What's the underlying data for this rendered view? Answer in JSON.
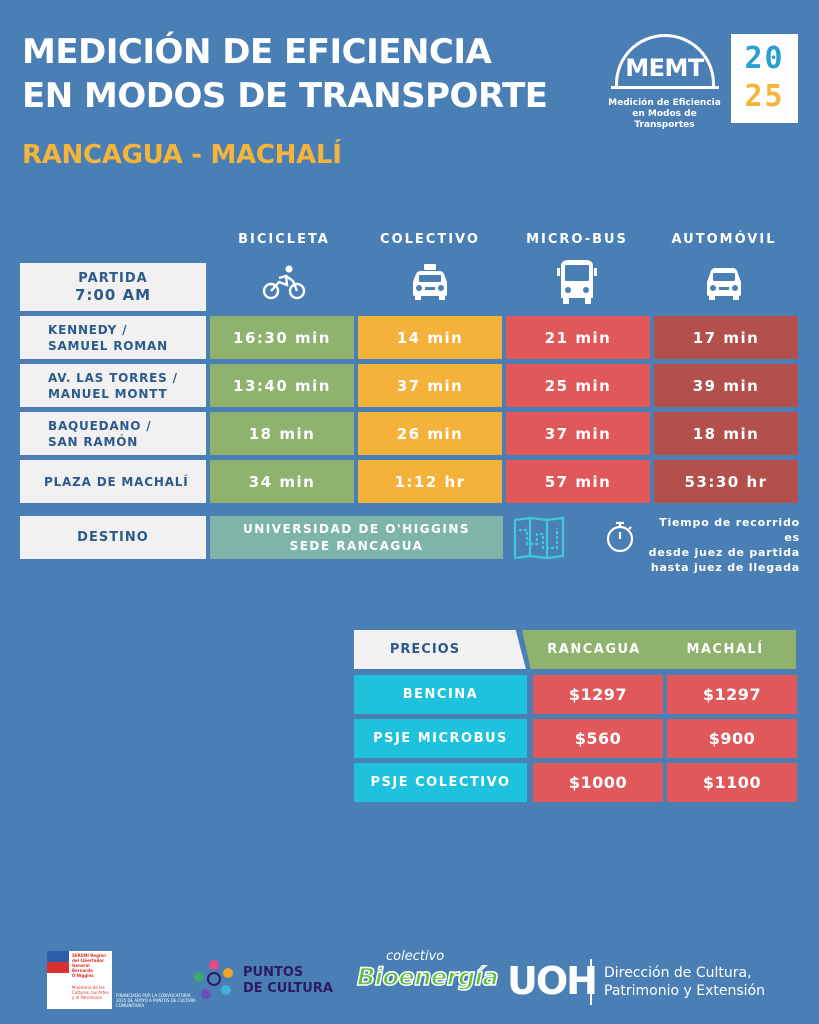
{
  "header": {
    "title_line1": "MEDICIÓN DE EFICIENCIA",
    "title_line2": "EN MODOS DE TRANSPORTE",
    "subtitle": "RANCAGUA - MACHALÍ"
  },
  "logo": {
    "memt": "MEMT",
    "memt_sub_line1": "Medición de Eficiencia",
    "memt_sub_line2": "en Modos de Transportes",
    "year_top": "20",
    "year_bottom": "25"
  },
  "columns": [
    "BICICLETA",
    "COLECTIVO",
    "MICRO-BUS",
    "AUTOMÓVIL"
  ],
  "icons": [
    "bicycle-icon",
    "taxi-icon",
    "bus-icon",
    "car-icon"
  ],
  "partida": {
    "label": "PARTIDA",
    "time": "7:00 AM"
  },
  "rows": [
    {
      "label1": "KENNEDY /",
      "label2": "SAMUEL ROMAN",
      "values": [
        "16:30 min",
        "14 min",
        "21 min",
        "17 min"
      ]
    },
    {
      "label1": "AV. LAS TORRES /",
      "label2": "MANUEL MONTT",
      "values": [
        "13:40 min",
        "37 min",
        "25 min",
        "39 min"
      ]
    },
    {
      "label1": "BAQUEDANO /",
      "label2": "SAN RAMÓN",
      "values": [
        "18 min",
        "26 min",
        "37 min",
        "18 min"
      ]
    },
    {
      "label1": "PLAZA DE MACHALÍ",
      "label2": "",
      "values": [
        "34 min",
        "1:12 hr",
        "57 min",
        "53:30 hr"
      ]
    }
  ],
  "destino": {
    "label": "DESTINO",
    "place_line1": "UNIVERSIDAD DE O'HIGGINS",
    "place_line2": "SEDE RANCAGUA"
  },
  "note": {
    "line1": "Tiempo de recorrido es",
    "line2": "desde juez de partida",
    "line3": "hasta juez de llegada"
  },
  "prices": {
    "header": "PRECIOS",
    "cities": [
      "RANCAGUA",
      "MACHALÍ"
    ],
    "rows": [
      {
        "label": "BENCINA",
        "values": [
          "$1297",
          "$1297"
        ]
      },
      {
        "label": "PSJE MICROBUS",
        "values": [
          "$560",
          "$900"
        ]
      },
      {
        "label": "PSJE COLECTIVO",
        "values": [
          "$1000",
          "$1100"
        ]
      }
    ]
  },
  "footer": {
    "seremi": "SEREMI Región del Libertador General Bernardo O'Higgins",
    "ministerio": "Ministerio de las Culturas, las Artes y el Patrimonio",
    "financiado": "FINANCIADO POR LA CONVOCATORIA 2025 DE APOYO A PUNTOS DE CULTURA COMUNITARIA",
    "puntos_line1": "PUNTOS",
    "puntos_line2": "DE CULTURA",
    "colectivo": "colectivo",
    "bioenergia": "Bioenergía",
    "uoh": "UOH",
    "uoh_line1": "Dirección de Cultura,",
    "uoh_line2": "Patrimonio y Extensión"
  },
  "colors": {
    "background": "#4a7fb5",
    "bicicleta": "#8fb36e",
    "colectivo": "#f5b23a",
    "microbus": "#e0585a",
    "automovil": "#b4504c",
    "accent_yellow": "#f5b53a",
    "cyan": "#1fc2dc"
  }
}
